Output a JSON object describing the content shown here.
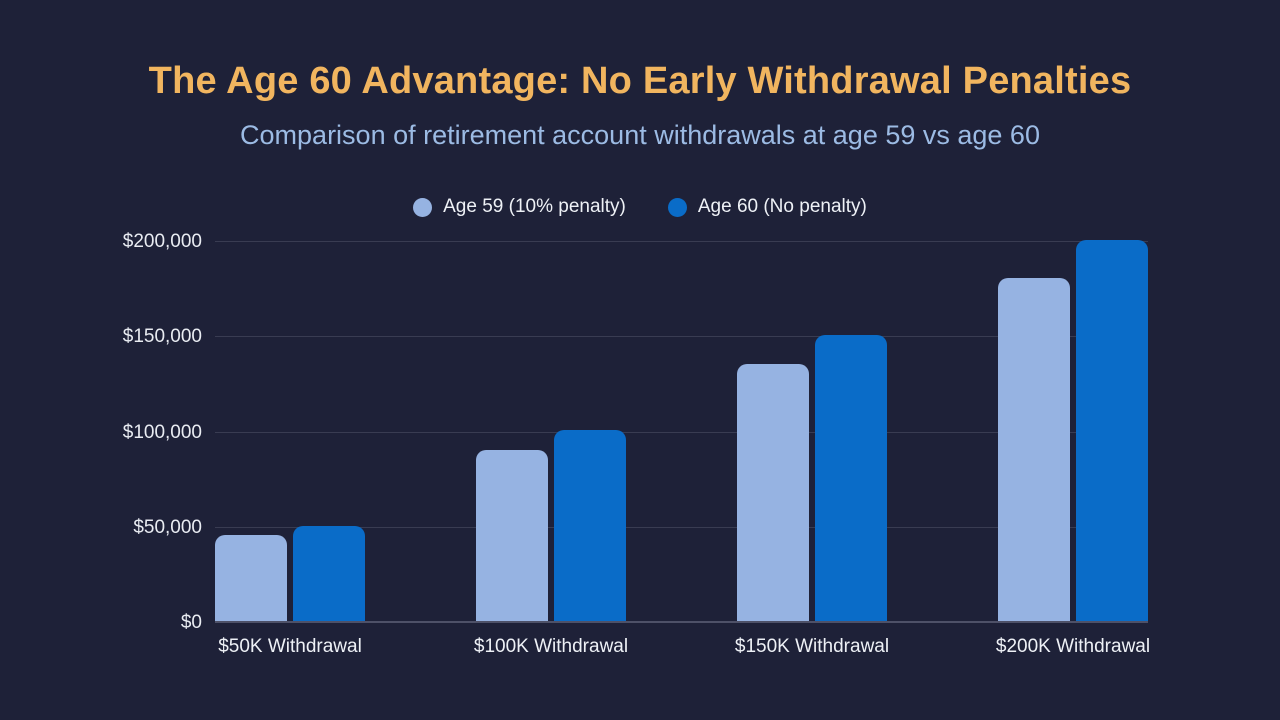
{
  "page": {
    "background_color": "#1e2138",
    "title_color": "#f1b55f",
    "subtitle_color": "#9cbbe4",
    "axis_text_color": "#e9ecf2",
    "gridline_color": "#393c52",
    "baseline_color": "#4e5168"
  },
  "header": {
    "title": "The Age 60 Advantage: No Early Withdrawal Penalties",
    "subtitle": "Comparison of retirement account withdrawals at age 59 vs age 60"
  },
  "chart_data": {
    "type": "bar",
    "title": "The Age 60 Advantage: No Early Withdrawal Penalties",
    "subtitle": "Comparison of retirement account withdrawals at age 59 vs age 60",
    "categories": [
      "$50K Withdrawal",
      "$100K Withdrawal",
      "$150K Withdrawal",
      "$200K Withdrawal"
    ],
    "series": [
      {
        "name": "Age 59 (10% penalty)",
        "color": "#96b3e2",
        "values": [
          45000,
          90000,
          135000,
          180000
        ]
      },
      {
        "name": "Age 60 (No penalty)",
        "color": "#0a6cc8",
        "values": [
          50000,
          100000,
          150000,
          200000
        ]
      }
    ],
    "xlabel": "",
    "ylabel": "",
    "ylim": [
      0,
      200000
    ],
    "y_ticks": [
      "$0",
      "$50,000",
      "$100,000",
      "$150,000",
      "$200,000"
    ],
    "grid": true,
    "legend_position": "top-center"
  }
}
